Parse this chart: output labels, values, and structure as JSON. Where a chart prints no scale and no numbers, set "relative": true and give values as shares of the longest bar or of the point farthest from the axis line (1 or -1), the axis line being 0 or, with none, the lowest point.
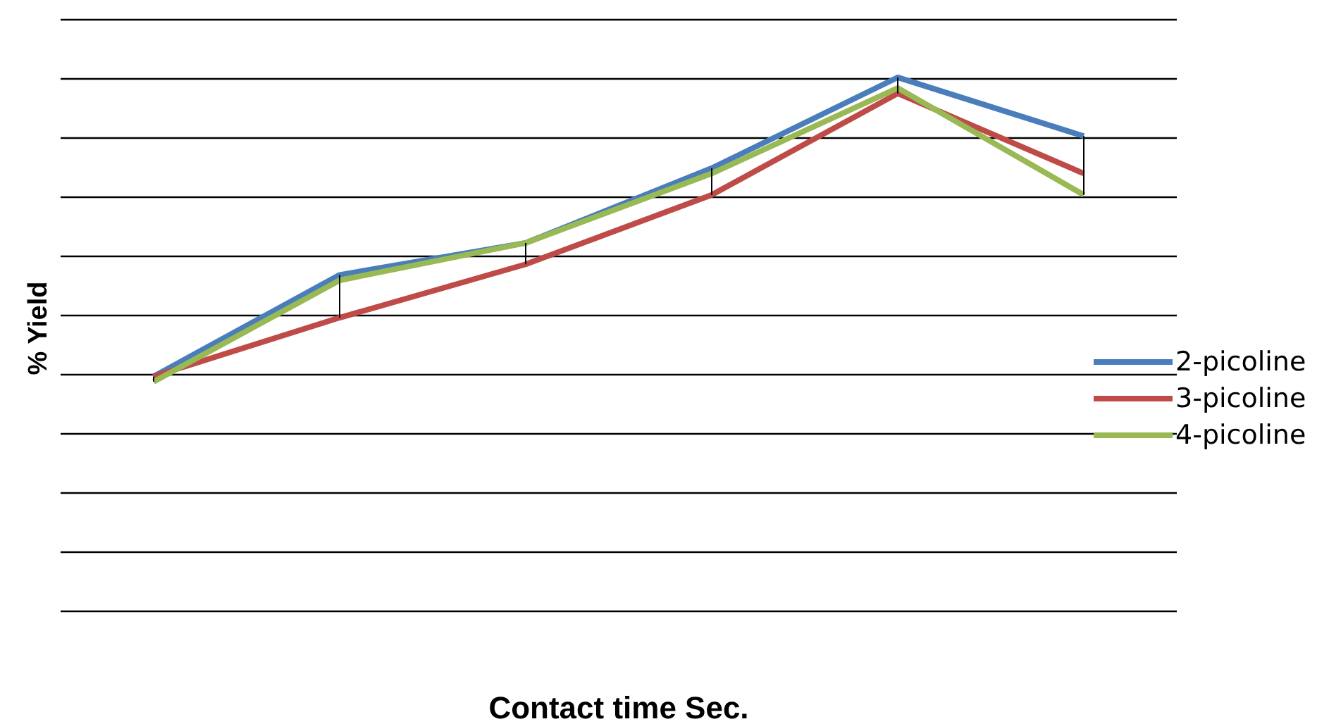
{
  "chart_data": {
    "type": "line",
    "xlabel": "Contact time Sec.",
    "ylabel": "% Yield",
    "relative": true,
    "categories": [
      null,
      null,
      null,
      null,
      null,
      null
    ],
    "grid": true,
    "legend": "right",
    "marker": "none",
    "line_style": "solid",
    "series": [
      {
        "name": "2-picoline",
        "color": "#4a7ebb",
        "values": [
          0.44,
          0.63,
          0.69,
          0.83,
          1.0,
          0.89
        ]
      },
      {
        "name": "3-picoline",
        "color": "#be4b48",
        "values": [
          0.44,
          0.55,
          0.65,
          0.78,
          0.97,
          0.82
        ]
      },
      {
        "name": "4-picoline",
        "color": "#98b954",
        "values": [
          0.43,
          0.62,
          0.69,
          0.82,
          0.98,
          0.78
        ]
      }
    ]
  }
}
